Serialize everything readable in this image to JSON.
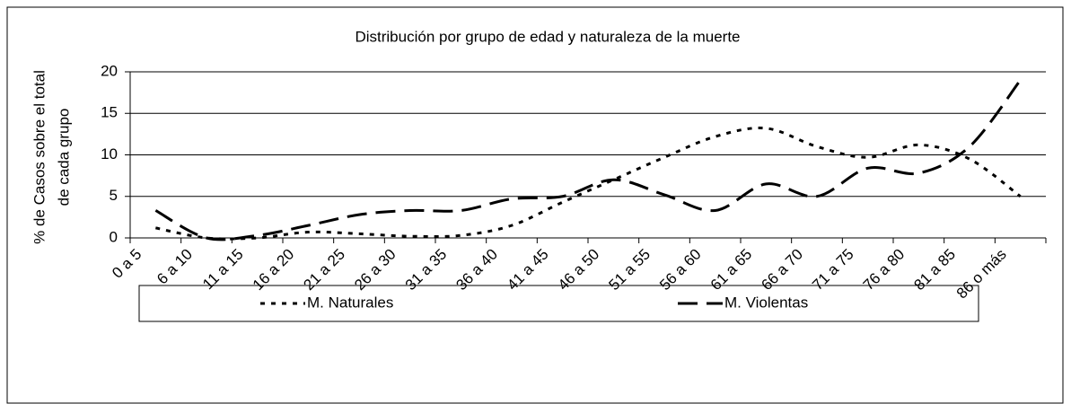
{
  "chart_data": {
    "type": "line",
    "title": "Distribución por grupo de edad y naturaleza de la muerte",
    "y_label": [
      "% de Casos sobre el total",
      "de cada grupo"
    ],
    "categories": [
      "0 a 5",
      "6 a 10",
      "11 a 15",
      "16 a 20",
      "21 a 25",
      "26 a 30",
      "31 a 35",
      "36 a 40",
      "41 a 45",
      "46 a 50",
      "51 a 55",
      "56 a 60",
      "61 a 65",
      "66 a 70",
      "71 a 75",
      "76 a 80",
      "81 a 85",
      "86 o más"
    ],
    "series": [
      {
        "name": "M. Naturales",
        "color": "#000000",
        "dash": "dotted",
        "values": [
          1.2,
          0,
          0,
          0.7,
          0.5,
          0.2,
          0.3,
          1.5,
          4.3,
          7,
          9.7,
          12.2,
          13.2,
          11,
          9.7,
          11.2,
          9.5,
          5
        ]
      },
      {
        "name": "M. Violentas",
        "color": "#000000",
        "dash": "dashed",
        "values": [
          3.3,
          0,
          0.3,
          1.5,
          2.8,
          3.3,
          3.3,
          4.7,
          5,
          7,
          5.2,
          3.3,
          6.5,
          5,
          8.4,
          7.8,
          11,
          19
        ]
      }
    ],
    "ylim": [
      0,
      20
    ],
    "yticks": [
      0,
      5,
      10,
      15,
      20
    ],
    "grid": true,
    "smooth": true,
    "legend": "bottom"
  }
}
